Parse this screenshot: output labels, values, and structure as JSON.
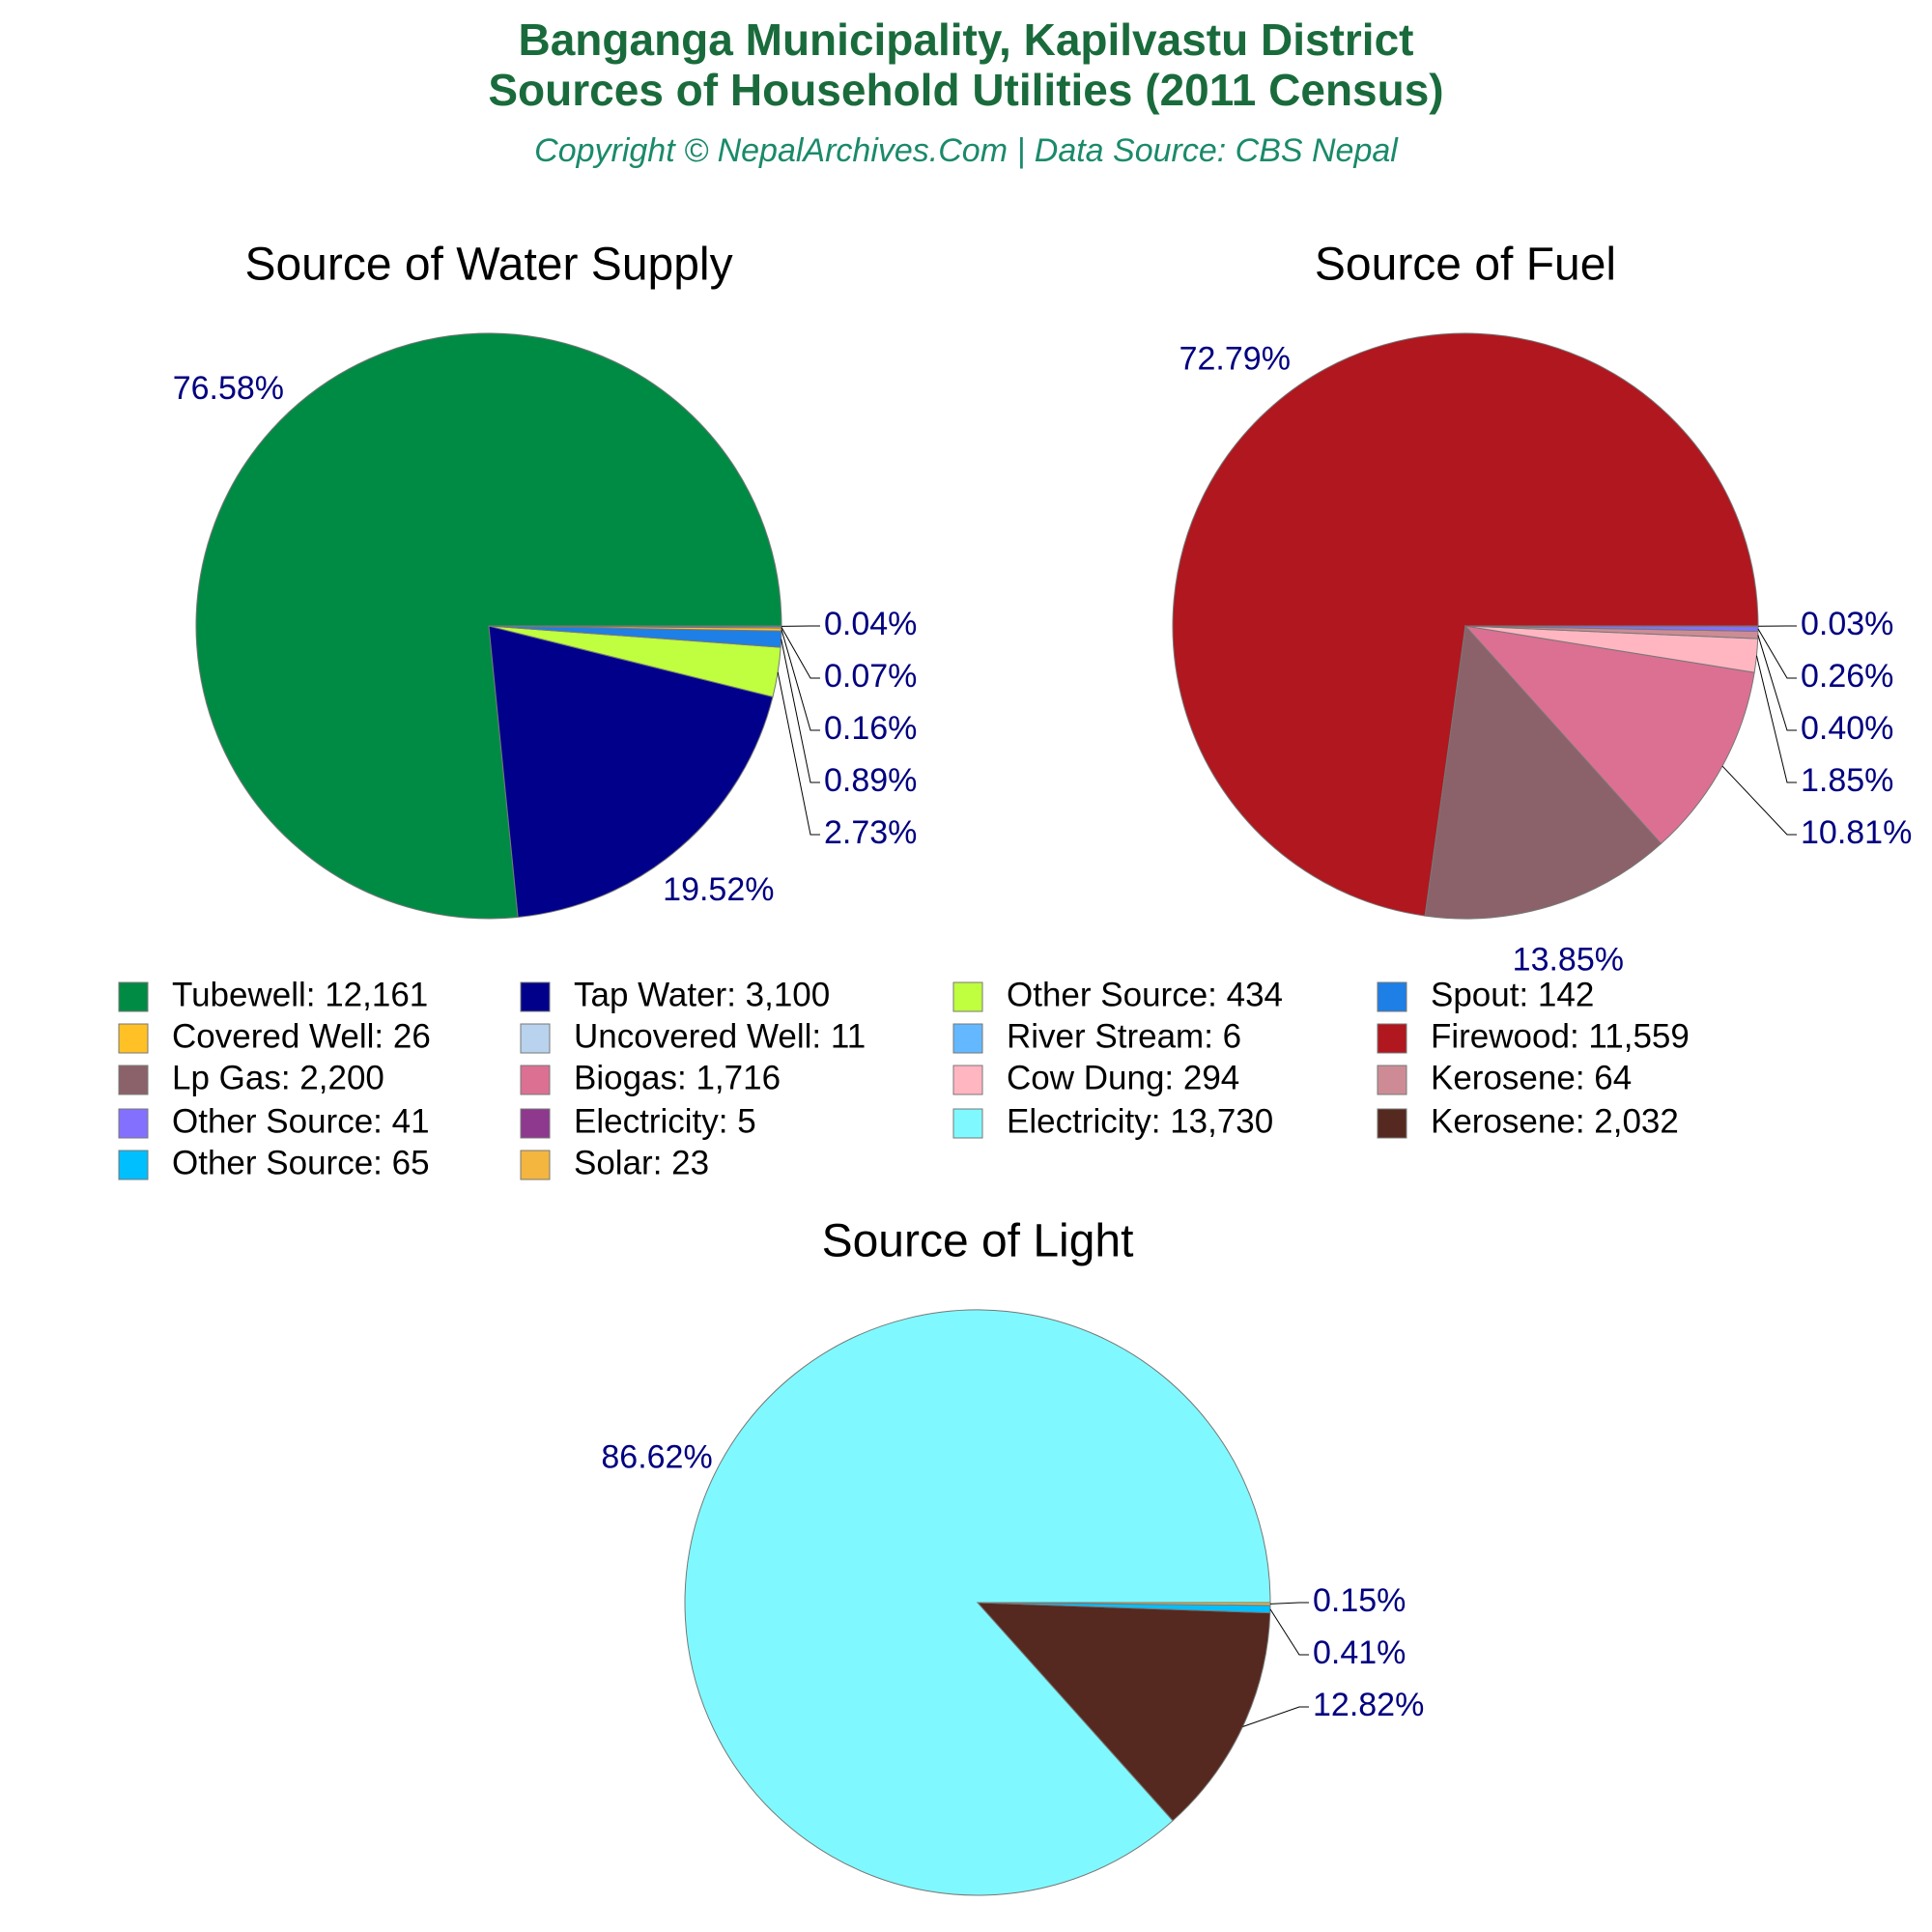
{
  "title": "Banganga Municipality, Kapilvastu District",
  "subtitle": "Sources of Household Utilities (2011 Census)",
  "copyright": "Copyright © NepalArchives.Com | Data Source: CBS Nepal",
  "chart_data": [
    {
      "type": "pie",
      "title": "Source of Water Supply",
      "categories": [
        "Tubewell: 12,161",
        "Tap Water: 3,100",
        "Other Source: 434",
        "Spout: 142",
        "Covered Well: 26",
        "Uncovered Well: 11",
        "River Stream: 6"
      ],
      "values": [
        76.58,
        19.52,
        2.73,
        0.89,
        0.16,
        0.07,
        0.04
      ],
      "value_labels": [
        "76.58%",
        "19.52%",
        "2.73%",
        "0.89%",
        "0.16%",
        "0.07%",
        "0.04%"
      ],
      "colors": [
        "#008b45",
        "#00008b",
        "#bfff3f",
        "#1e7fe6",
        "#ffc125",
        "#b9d3ee",
        "#63b8ff"
      ]
    },
    {
      "type": "pie",
      "title": "Source of Fuel",
      "categories": [
        "Firewood: 11,559",
        "Lp Gas: 2,200",
        "Biogas: 1,716",
        "Cow Dung: 294",
        "Kerosene: 64",
        "Other Source: 41",
        "Electricity: 5"
      ],
      "values": [
        72.79,
        13.85,
        10.81,
        1.85,
        0.4,
        0.26,
        0.03
      ],
      "value_labels": [
        "72.79%",
        "13.85%",
        "10.81%",
        "1.85%",
        "0.40%",
        "0.26%",
        "0.03%"
      ],
      "colors": [
        "#b0171f",
        "#8b6269",
        "#db7093",
        "#ffb6c1",
        "#cd8c95",
        "#8470ff",
        "#8e388e"
      ]
    },
    {
      "type": "pie",
      "title": "Source of Light",
      "categories": [
        "Electricity: 13,730",
        "Kerosene: 2,032",
        "Other Source: 65",
        "Solar: 23"
      ],
      "values": [
        86.62,
        12.82,
        0.41,
        0.15
      ],
      "value_labels": [
        "86.62%",
        "12.82%",
        "0.41%",
        "0.15%"
      ],
      "colors": [
        "#7ff9ff",
        "#55291f",
        "#00bfff",
        "#f4b63f"
      ]
    }
  ]
}
